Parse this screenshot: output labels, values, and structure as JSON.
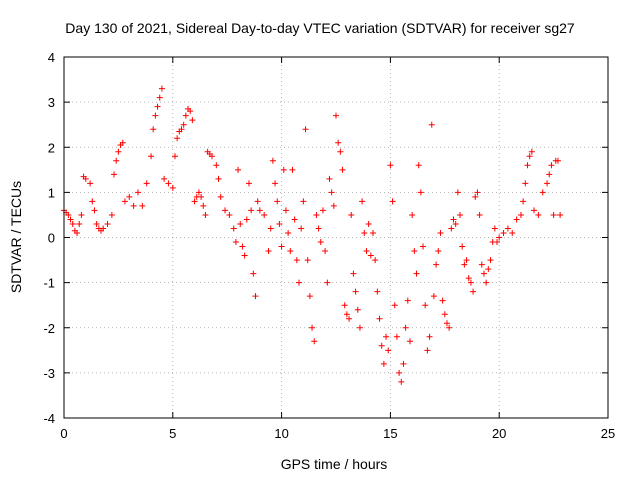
{
  "chart_data": {
    "type": "scatter",
    "title": "Day 130 of 2021, Sidereal Day-to-day VTEC variation (SDTVAR) for receiver sg27",
    "xlabel": "GPS time / hours",
    "ylabel": "SDTVAR / TECUs",
    "xlim": [
      0,
      25
    ],
    "ylim": [
      -4,
      4
    ],
    "xticks": [
      0,
      5,
      10,
      15,
      20,
      25
    ],
    "yticks": [
      -4,
      -3,
      -2,
      -1,
      0,
      1,
      2,
      3,
      4
    ],
    "grid": true,
    "marker": "plus",
    "color": "#ff0000",
    "series": [
      {
        "name": "SDTVAR",
        "points": [
          [
            0.0,
            0.6
          ],
          [
            0.1,
            0.55
          ],
          [
            0.2,
            0.5
          ],
          [
            0.3,
            0.4
          ],
          [
            0.4,
            0.3
          ],
          [
            0.5,
            0.15
          ],
          [
            0.6,
            0.1
          ],
          [
            0.7,
            0.3
          ],
          [
            0.8,
            0.5
          ],
          [
            0.9,
            1.35
          ],
          [
            1.0,
            1.3
          ],
          [
            1.2,
            1.2
          ],
          [
            1.3,
            0.8
          ],
          [
            1.4,
            0.6
          ],
          [
            1.5,
            0.3
          ],
          [
            1.6,
            0.2
          ],
          [
            1.7,
            0.15
          ],
          [
            1.8,
            0.2
          ],
          [
            2.0,
            0.3
          ],
          [
            2.2,
            0.5
          ],
          [
            2.3,
            1.4
          ],
          [
            2.4,
            1.7
          ],
          [
            2.5,
            1.9
          ],
          [
            2.6,
            2.05
          ],
          [
            2.7,
            2.1
          ],
          [
            2.8,
            0.8
          ],
          [
            3.0,
            0.9
          ],
          [
            3.2,
            0.7
          ],
          [
            3.4,
            1.0
          ],
          [
            3.6,
            0.7
          ],
          [
            3.8,
            1.2
          ],
          [
            4.0,
            1.8
          ],
          [
            4.1,
            2.4
          ],
          [
            4.2,
            2.7
          ],
          [
            4.3,
            2.9
          ],
          [
            4.4,
            3.1
          ],
          [
            4.5,
            3.3
          ],
          [
            4.6,
            1.3
          ],
          [
            4.8,
            1.2
          ],
          [
            5.0,
            1.1
          ],
          [
            5.1,
            1.8
          ],
          [
            5.2,
            2.2
          ],
          [
            5.3,
            2.35
          ],
          [
            5.4,
            2.4
          ],
          [
            5.5,
            2.5
          ],
          [
            5.6,
            2.7
          ],
          [
            5.7,
            2.85
          ],
          [
            5.8,
            2.8
          ],
          [
            5.9,
            2.6
          ],
          [
            6.0,
            0.8
          ],
          [
            6.1,
            0.9
          ],
          [
            6.2,
            1.0
          ],
          [
            6.3,
            0.9
          ],
          [
            6.4,
            0.7
          ],
          [
            6.5,
            0.5
          ],
          [
            6.6,
            1.9
          ],
          [
            6.7,
            1.85
          ],
          [
            6.8,
            1.8
          ],
          [
            7.0,
            1.6
          ],
          [
            7.1,
            1.3
          ],
          [
            7.2,
            0.9
          ],
          [
            7.4,
            0.6
          ],
          [
            7.6,
            0.5
          ],
          [
            7.8,
            0.2
          ],
          [
            7.9,
            -0.1
          ],
          [
            8.0,
            1.5
          ],
          [
            8.1,
            0.3
          ],
          [
            8.2,
            -0.2
          ],
          [
            8.3,
            -0.4
          ],
          [
            8.4,
            0.4
          ],
          [
            8.5,
            1.2
          ],
          [
            8.6,
            0.6
          ],
          [
            8.7,
            -0.8
          ],
          [
            8.8,
            -1.3
          ],
          [
            8.9,
            0.8
          ],
          [
            9.0,
            0.6
          ],
          [
            9.2,
            0.5
          ],
          [
            9.4,
            -0.3
          ],
          [
            9.5,
            0.2
          ],
          [
            9.6,
            1.7
          ],
          [
            9.7,
            1.2
          ],
          [
            9.8,
            0.8
          ],
          [
            9.9,
            0.3
          ],
          [
            10.0,
            -0.2
          ],
          [
            10.1,
            1.5
          ],
          [
            10.2,
            0.6
          ],
          [
            10.3,
            0.1
          ],
          [
            10.4,
            -0.3
          ],
          [
            10.5,
            1.5
          ],
          [
            10.6,
            0.4
          ],
          [
            10.7,
            -0.5
          ],
          [
            10.8,
            -1.0
          ],
          [
            10.9,
            0.2
          ],
          [
            11.0,
            0.8
          ],
          [
            11.1,
            2.4
          ],
          [
            11.2,
            -0.5
          ],
          [
            11.3,
            -1.3
          ],
          [
            11.4,
            -2.0
          ],
          [
            11.5,
            -2.3
          ],
          [
            11.6,
            0.5
          ],
          [
            11.7,
            0.2
          ],
          [
            11.8,
            -0.1
          ],
          [
            11.9,
            0.6
          ],
          [
            12.0,
            -0.3
          ],
          [
            12.1,
            -1.0
          ],
          [
            12.2,
            1.3
          ],
          [
            12.3,
            1.0
          ],
          [
            12.4,
            0.7
          ],
          [
            12.5,
            2.7
          ],
          [
            12.6,
            2.1
          ],
          [
            12.7,
            1.9
          ],
          [
            12.8,
            1.5
          ],
          [
            12.9,
            -1.5
          ],
          [
            13.0,
            -1.7
          ],
          [
            13.1,
            -1.8
          ],
          [
            13.2,
            0.5
          ],
          [
            13.3,
            -0.8
          ],
          [
            13.4,
            -1.2
          ],
          [
            13.5,
            -1.6
          ],
          [
            13.6,
            -2.0
          ],
          [
            13.7,
            0.8
          ],
          [
            13.8,
            0.1
          ],
          [
            13.9,
            -0.3
          ],
          [
            14.0,
            0.3
          ],
          [
            14.1,
            -0.4
          ],
          [
            14.2,
            0.1
          ],
          [
            14.3,
            -0.5
          ],
          [
            14.4,
            -1.2
          ],
          [
            14.5,
            -1.8
          ],
          [
            14.6,
            -2.4
          ],
          [
            14.7,
            -2.8
          ],
          [
            14.8,
            -2.2
          ],
          [
            14.9,
            -2.5
          ],
          [
            15.0,
            1.6
          ],
          [
            15.1,
            0.8
          ],
          [
            15.2,
            -1.5
          ],
          [
            15.3,
            -2.2
          ],
          [
            15.4,
            -3.0
          ],
          [
            15.5,
            -3.2
          ],
          [
            15.6,
            -2.8
          ],
          [
            15.7,
            -2.0
          ],
          [
            15.8,
            -1.4
          ],
          [
            15.9,
            -2.3
          ],
          [
            16.0,
            0.5
          ],
          [
            16.1,
            -0.3
          ],
          [
            16.2,
            -0.8
          ],
          [
            16.3,
            1.6
          ],
          [
            16.4,
            1.0
          ],
          [
            16.5,
            -0.2
          ],
          [
            16.6,
            -1.5
          ],
          [
            16.7,
            -2.5
          ],
          [
            16.8,
            -2.2
          ],
          [
            16.9,
            2.5
          ],
          [
            17.0,
            -1.3
          ],
          [
            17.1,
            -0.6
          ],
          [
            17.2,
            -0.3
          ],
          [
            17.3,
            0.1
          ],
          [
            17.4,
            -1.4
          ],
          [
            17.5,
            -1.7
          ],
          [
            17.6,
            -1.9
          ],
          [
            17.7,
            -2.0
          ],
          [
            17.8,
            0.2
          ],
          [
            17.9,
            0.4
          ],
          [
            18.0,
            0.3
          ],
          [
            18.1,
            1.0
          ],
          [
            18.2,
            0.5
          ],
          [
            18.3,
            -0.2
          ],
          [
            18.4,
            -0.6
          ],
          [
            18.5,
            -0.5
          ],
          [
            18.6,
            -0.9
          ],
          [
            18.7,
            -1.0
          ],
          [
            18.8,
            -1.2
          ],
          [
            18.9,
            0.9
          ],
          [
            19.0,
            1.0
          ],
          [
            19.1,
            0.5
          ],
          [
            19.2,
            -0.6
          ],
          [
            19.3,
            -0.8
          ],
          [
            19.4,
            -1.0
          ],
          [
            19.5,
            -0.7
          ],
          [
            19.6,
            -0.5
          ],
          [
            19.7,
            -0.1
          ],
          [
            19.8,
            0.2
          ],
          [
            19.9,
            -0.1
          ],
          [
            20.0,
            0.0
          ],
          [
            20.2,
            0.1
          ],
          [
            20.4,
            0.2
          ],
          [
            20.6,
            0.1
          ],
          [
            20.8,
            0.4
          ],
          [
            21.0,
            0.5
          ],
          [
            21.1,
            0.8
          ],
          [
            21.2,
            1.2
          ],
          [
            21.3,
            1.6
          ],
          [
            21.4,
            1.8
          ],
          [
            21.5,
            1.9
          ],
          [
            21.6,
            0.6
          ],
          [
            21.8,
            0.5
          ],
          [
            22.0,
            1.0
          ],
          [
            22.2,
            1.2
          ],
          [
            22.3,
            1.4
          ],
          [
            22.4,
            1.6
          ],
          [
            22.5,
            0.5
          ],
          [
            22.6,
            1.7
          ],
          [
            22.7,
            1.7
          ],
          [
            22.8,
            0.5
          ]
        ]
      }
    ]
  }
}
